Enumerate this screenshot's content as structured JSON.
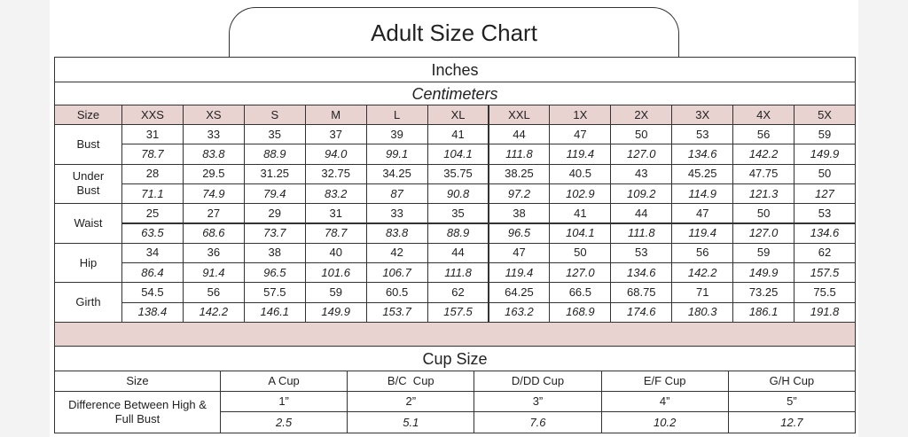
{
  "title": "Adult Size Chart",
  "size_table": {
    "unit_primary": "Inches",
    "unit_secondary": "Centimeters",
    "header": [
      "Size",
      "XXS",
      "XS",
      "S",
      "M",
      "L",
      "XL",
      "XXL",
      "1X",
      "2X",
      "3X",
      "4X",
      "5X"
    ],
    "rows": [
      {
        "label": "Bust",
        "inches": [
          "31",
          "33",
          "35",
          "37",
          "39",
          "41",
          "44",
          "47",
          "50",
          "53",
          "56",
          "59"
        ],
        "centimeters": [
          "78.7",
          "83.8",
          "88.9",
          "94.0",
          "99.1",
          "104.1",
          "111.8",
          "119.4",
          "127.0",
          "134.6",
          "142.2",
          "149.9"
        ]
      },
      {
        "label": "Under Bust",
        "inches": [
          "28",
          "29.5",
          "31.25",
          "32.75",
          "34.25",
          "35.75",
          "38.25",
          "40.5",
          "43",
          "45.25",
          "47.75",
          "50"
        ],
        "centimeters": [
          "71.1",
          "74.9",
          "79.4",
          "83.2",
          "87",
          "90.8",
          "97.2",
          "102.9",
          "109.2",
          "114.9",
          "121.3",
          "127"
        ]
      },
      {
        "label": "Waist",
        "inches": [
          "25",
          "27",
          "29",
          "31",
          "33",
          "35",
          "38",
          "41",
          "44",
          "47",
          "50",
          "53"
        ],
        "centimeters": [
          "63.5",
          "68.6",
          "73.7",
          "78.7",
          "83.8",
          "88.9",
          "96.5",
          "104.1",
          "111.8",
          "119.4",
          "127.0",
          "134.6"
        ]
      },
      {
        "label": "Hip",
        "inches": [
          "34",
          "36",
          "38",
          "40",
          "42",
          "44",
          "47",
          "50",
          "53",
          "56",
          "59",
          "62"
        ],
        "centimeters": [
          "86.4",
          "91.4",
          "96.5",
          "101.6",
          "106.7",
          "111.8",
          "119.4",
          "127.0",
          "134.6",
          "142.2",
          "149.9",
          "157.5"
        ]
      },
      {
        "label": "Girth",
        "inches": [
          "54.5",
          "56",
          "57.5",
          "59",
          "60.5",
          "62",
          "64.25",
          "66.5",
          "68.75",
          "71",
          "73.25",
          "75.5"
        ],
        "centimeters": [
          "138.4",
          "142.2",
          "146.1",
          "149.9",
          "153.7",
          "157.5",
          "163.2",
          "168.9",
          "174.6",
          "180.3",
          "186.1",
          "191.8"
        ]
      }
    ]
  },
  "cup_table": {
    "title": "Cup Size",
    "header": [
      "Size",
      "A Cup",
      "B/C  Cup",
      "D/DD Cup",
      "E/F Cup",
      "G/H Cup"
    ],
    "row_label": "Difference Between High & Full Bust",
    "inches": [
      "1”",
      "2”",
      "3”",
      "4”",
      "5”"
    ],
    "centimeters": [
      "2.5",
      "5.1",
      "7.6",
      "10.2",
      "12.7"
    ]
  }
}
